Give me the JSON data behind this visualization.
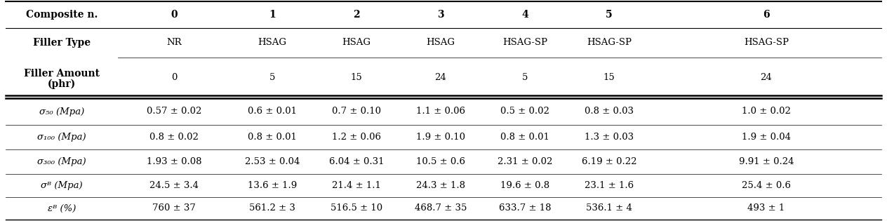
{
  "col_headers": [
    "Composite n.",
    "0",
    "1",
    "2",
    "3",
    "4",
    "5",
    "6"
  ],
  "filler_types": [
    "NR",
    "HSAG",
    "HSAG",
    "HSAG",
    "HSAG-SP",
    "HSAG-SP",
    "HSAG-SP"
  ],
  "filler_amounts": [
    "0",
    "5",
    "15",
    "24",
    "5",
    "15",
    "24"
  ],
  "row_labels": [
    "σ₅₀ (Mpa)",
    "σ₁₀₀ (Mpa)",
    "σ₃₀₀ (Mpa)",
    "σᴮ (Mpa)",
    "εᴮ (%)"
  ],
  "data_values": [
    [
      "0.57 ± 0.02",
      "0.6 ± 0.01",
      "0.7 ± 0.10",
      "1.1 ± 0.06",
      "0.5 ± 0.02",
      "0.8 ± 0.03",
      "1.0 ± 0.02"
    ],
    [
      "0.8 ± 0.02",
      "0.8 ± 0.01",
      "1.2 ± 0.06",
      "1.9 ± 0.10",
      "0.8 ± 0.01",
      "1.3 ± 0.03",
      "1.9 ± 0.04"
    ],
    [
      "1.93 ± 0.08",
      "2.53 ± 0.04",
      "6.04 ± 0.31",
      "10.5 ± 0.6",
      "2.31 ± 0.02",
      "6.19 ± 0.22",
      "9.91 ± 0.24"
    ],
    [
      "24.5 ± 3.4",
      "13.6 ± 1.9",
      "21.4 ± 1.1",
      "24.3 ± 1.8",
      "19.6 ± 0.8",
      "23.1 ± 1.6",
      "25.4 ± 0.6"
    ],
    [
      "760 ± 37",
      "561.2 ± 3",
      "516.5 ± 10",
      "468.7 ± 35",
      "633.7 ± 18",
      "536.1 ± 4",
      "493 ± 1"
    ]
  ],
  "bg_color": "#ffffff",
  "text_color": "#000000",
  "line_color": "#000000"
}
